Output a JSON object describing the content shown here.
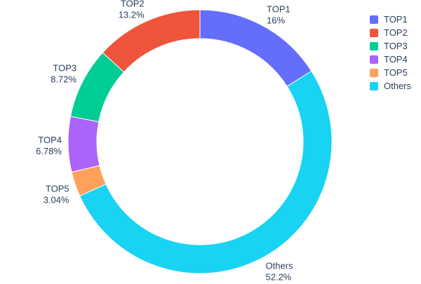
{
  "chart_data": {
    "type": "pie",
    "hole": 0.78,
    "title": "",
    "labels": [
      "TOP1",
      "TOP2",
      "TOP3",
      "TOP4",
      "TOP5",
      "Others"
    ],
    "values": [
      16,
      13.2,
      8.72,
      6.78,
      3.04,
      52.2
    ],
    "percent_labels": [
      "16%",
      "13.2%",
      "8.72%",
      "6.78%",
      "3.04%",
      "52.2%"
    ],
    "colors": [
      "#636efa",
      "#ef553b",
      "#00cc96",
      "#ab63fa",
      "#ffa15a",
      "#19d3f3"
    ],
    "text_color": "#2a3f5f",
    "background": "#ffffff",
    "legend": {
      "position": "top-right",
      "entries": [
        "TOP1",
        "TOP2",
        "TOP3",
        "TOP4",
        "TOP5",
        "Others"
      ]
    },
    "layout_hints": {
      "label_position": "outside",
      "first_slice_direction": "clockwise-from-top",
      "remaining_slices_direction": "counterclockwise-from-top"
    }
  }
}
